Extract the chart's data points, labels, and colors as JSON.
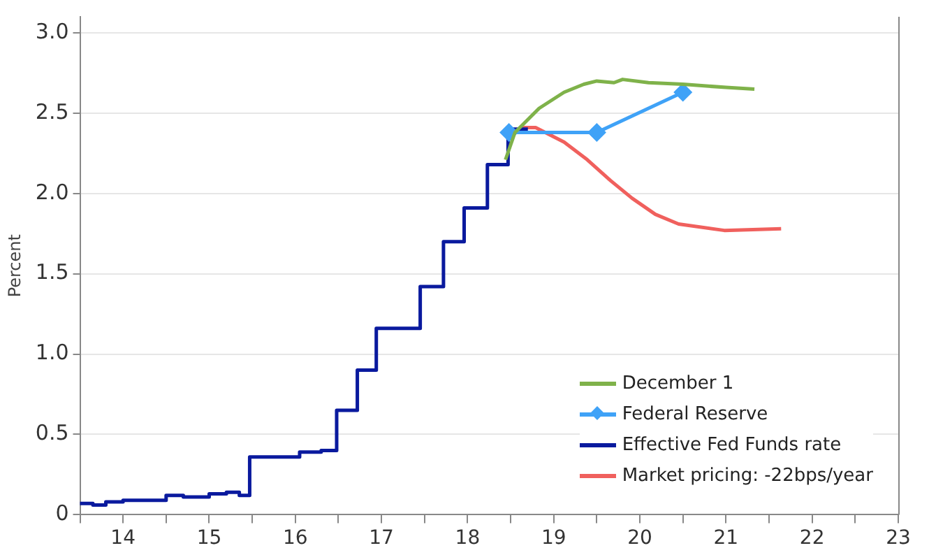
{
  "chart_data": {
    "type": "line",
    "ylabel": "Percent",
    "xlim": [
      13.5,
      23.0
    ],
    "xticks": [
      {
        "value": 13.5,
        "label": null
      },
      {
        "value": 14.5,
        "label": null
      },
      {
        "value": 15.5,
        "label": null
      },
      {
        "value": 16.5,
        "label": null
      },
      {
        "value": 17.5,
        "label": null
      },
      {
        "value": 18.5,
        "label": null
      },
      {
        "value": 19.5,
        "label": null
      },
      {
        "value": 20.5,
        "label": null
      },
      {
        "value": 21.5,
        "label": null
      },
      {
        "value": 22.5,
        "label": null
      },
      14,
      15,
      16,
      17,
      18,
      19,
      20,
      21,
      22,
      23
    ],
    "ylim": [
      0,
      3.1
    ],
    "yticks": [
      0,
      {
        "value": 0.5,
        "label": "0.5"
      },
      {
        "value": 1,
        "label": "1.0"
      },
      {
        "value": 1.5,
        "label": "1.5"
      },
      {
        "value": 2,
        "label": "2.0"
      },
      {
        "value": 2.5,
        "label": "2.5"
      },
      {
        "value": 3,
        "label": "3.0"
      }
    ],
    "grid": "y",
    "legend": "bottom right",
    "line_style": "solid",
    "series": [
      {
        "name": "December 1",
        "color": "#7fb24a",
        "marker": "none",
        "x": [
          18.44,
          18.55,
          18.83,
          19.12,
          19.35,
          19.5,
          19.7,
          19.8,
          20.1,
          20.5,
          21.0,
          21.33
        ],
        "values": [
          2.21,
          2.38,
          2.53,
          2.63,
          2.68,
          2.7,
          2.69,
          2.71,
          2.69,
          2.68,
          2.66,
          2.65
        ]
      },
      {
        "name": "Federal Reserve",
        "color": "#3fa2f7",
        "marker": "diamond",
        "x": [
          18.48,
          19.5,
          20.5
        ],
        "values": [
          2.38,
          2.38,
          2.63
        ]
      },
      {
        "name": "Effective Fed Funds rate",
        "type": "step",
        "color": "#0a1a9e",
        "marker": "none",
        "x": [
          13.5,
          13.65,
          13.8,
          14.0,
          14.5,
          14.7,
          15.0,
          15.2,
          15.35,
          15.47,
          16.05,
          16.3,
          16.48,
          16.72,
          16.94,
          17.45,
          17.72,
          17.96,
          18.23,
          18.47,
          18.7
        ],
        "values": [
          0.07,
          0.06,
          0.08,
          0.09,
          0.12,
          0.11,
          0.13,
          0.14,
          0.12,
          0.36,
          0.39,
          0.4,
          0.65,
          0.9,
          1.16,
          1.42,
          1.7,
          1.91,
          2.18,
          2.4,
          2.4
        ]
      },
      {
        "name": "Market pricing: -22bps/year",
        "color": "#f0605d",
        "marker": "none",
        "x": [
          18.6,
          18.79,
          19.12,
          19.39,
          19.66,
          19.91,
          20.18,
          20.45,
          20.98,
          21.64
        ],
        "values": [
          2.41,
          2.41,
          2.32,
          2.21,
          2.08,
          1.97,
          1.87,
          1.81,
          1.77,
          1.78
        ]
      }
    ]
  }
}
